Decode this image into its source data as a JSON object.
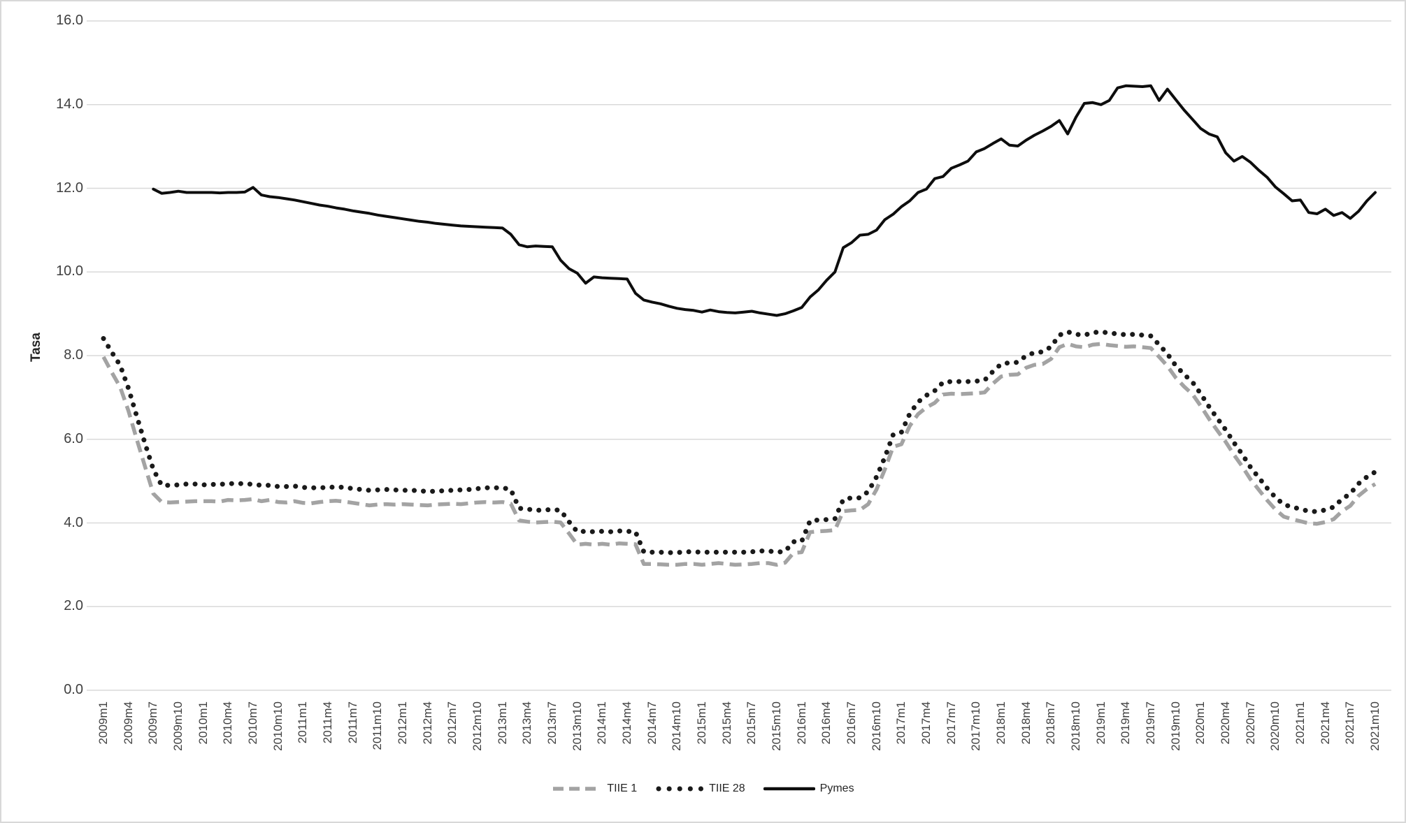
{
  "chart_data": {
    "type": "line",
    "title": "",
    "xlabel": "",
    "ylabel": "Tasa",
    "ylim": [
      0,
      16
    ],
    "ytick_labels": [
      "0.0",
      "2.0",
      "4.0",
      "6.0",
      "8.0",
      "10.0",
      "12.0",
      "14.0",
      "16.0"
    ],
    "ytick_values": [
      0,
      2,
      4,
      6,
      8,
      10,
      12,
      14,
      16
    ],
    "grid": "horizontal",
    "legend_position": "bottom-center",
    "n_months": 154,
    "x_start": "2009m1",
    "x_end": "2021m10",
    "x_tick_every_months": 3,
    "x_tick_labels": [
      "2009m1",
      "2009m4",
      "2009m7",
      "2009m10",
      "2010m1",
      "2010m4",
      "2010m7",
      "2010m10",
      "2011m1",
      "2011m4",
      "2011m7",
      "2011m10",
      "2012m1",
      "2012m4",
      "2012m7",
      "2012m10",
      "2013m1",
      "2013m4",
      "2013m7",
      "2013m10",
      "2014m1",
      "2014m4",
      "2014m7",
      "2014m10",
      "2015m1",
      "2015m4",
      "2015m7",
      "2015m10",
      "2016m1",
      "2016m4",
      "2016m7",
      "2016m10",
      "2017m1",
      "2017m4",
      "2017m7",
      "2017m10",
      "2018m1",
      "2018m4",
      "2018m7",
      "2018m10",
      "2019m1",
      "2019m4",
      "2019m7",
      "2019m10",
      "2020m1",
      "2020m4",
      "2020m7",
      "2020m10",
      "2021m1",
      "2021m4",
      "2021m7",
      "2021m10"
    ],
    "series": [
      {
        "name": "TIIE 1",
        "style": "dashed",
        "color": "#a3a3a3",
        "values": [
          7.97,
          7.6,
          7.25,
          6.68,
          6.0,
          5.35,
          4.7,
          4.5,
          4.49,
          4.5,
          4.51,
          4.52,
          4.52,
          4.52,
          4.51,
          4.55,
          4.54,
          4.55,
          4.57,
          4.52,
          4.55,
          4.5,
          4.49,
          4.52,
          4.48,
          4.47,
          4.5,
          4.52,
          4.53,
          4.51,
          4.48,
          4.45,
          4.42,
          4.44,
          4.45,
          4.44,
          4.45,
          4.44,
          4.43,
          4.42,
          4.44,
          4.45,
          4.46,
          4.45,
          4.47,
          4.49,
          4.5,
          4.49,
          4.5,
          4.46,
          4.06,
          4.03,
          4.01,
          4.02,
          4.03,
          4.01,
          3.75,
          3.48,
          3.5,
          3.48,
          3.5,
          3.48,
          3.51,
          3.5,
          3.49,
          3.02,
          3.02,
          3.01,
          3.0,
          3.0,
          3.02,
          3.02,
          3.0,
          3.02,
          3.04,
          3.02,
          3.0,
          3.01,
          3.02,
          3.04,
          3.04,
          3.0,
          3.05,
          3.28,
          3.3,
          3.78,
          3.8,
          3.81,
          3.83,
          4.28,
          4.3,
          4.31,
          4.45,
          4.8,
          5.28,
          5.82,
          5.88,
          6.32,
          6.6,
          6.76,
          6.87,
          7.07,
          7.09,
          7.08,
          7.09,
          7.1,
          7.12,
          7.33,
          7.5,
          7.54,
          7.55,
          7.71,
          7.78,
          7.8,
          7.92,
          8.2,
          8.28,
          8.22,
          8.2,
          8.26,
          8.28,
          8.25,
          8.23,
          8.21,
          8.22,
          8.2,
          8.18,
          7.97,
          7.75,
          7.47,
          7.26,
          7.08,
          6.8,
          6.49,
          6.21,
          5.94,
          5.63,
          5.35,
          5.04,
          4.79,
          4.54,
          4.32,
          4.15,
          4.09,
          4.04,
          3.99,
          3.98,
          4.02,
          4.09,
          4.28,
          4.41,
          4.65,
          4.81,
          4.93
        ]
      },
      {
        "name": "TIIE 28",
        "style": "dotted",
        "color": "#1a1a1a",
        "values": [
          8.41,
          8.08,
          7.77,
          7.22,
          6.55,
          5.9,
          5.28,
          4.9,
          4.9,
          4.91,
          4.93,
          4.93,
          4.91,
          4.92,
          4.92,
          4.94,
          4.94,
          4.94,
          4.92,
          4.9,
          4.9,
          4.87,
          4.87,
          4.88,
          4.85,
          4.84,
          4.84,
          4.85,
          4.86,
          4.85,
          4.82,
          4.8,
          4.78,
          4.79,
          4.8,
          4.79,
          4.78,
          4.78,
          4.77,
          4.75,
          4.76,
          4.77,
          4.78,
          4.79,
          4.8,
          4.82,
          4.84,
          4.84,
          4.84,
          4.8,
          4.35,
          4.33,
          4.3,
          4.31,
          4.32,
          4.3,
          4.03,
          3.79,
          3.8,
          3.79,
          3.8,
          3.79,
          3.81,
          3.8,
          3.79,
          3.31,
          3.3,
          3.3,
          3.29,
          3.29,
          3.31,
          3.31,
          3.3,
          3.3,
          3.3,
          3.3,
          3.3,
          3.3,
          3.31,
          3.33,
          3.33,
          3.3,
          3.32,
          3.55,
          3.56,
          4.05,
          4.07,
          4.08,
          4.1,
          4.56,
          4.6,
          4.6,
          4.75,
          5.1,
          5.57,
          6.11,
          6.17,
          6.61,
          6.89,
          7.05,
          7.16,
          7.36,
          7.38,
          7.38,
          7.38,
          7.39,
          7.41,
          7.62,
          7.8,
          7.83,
          7.84,
          8.0,
          8.07,
          8.09,
          8.21,
          8.49,
          8.57,
          8.51,
          8.49,
          8.55,
          8.57,
          8.54,
          8.52,
          8.5,
          8.51,
          8.49,
          8.47,
          8.26,
          8.04,
          7.76,
          7.55,
          7.37,
          7.09,
          6.78,
          6.5,
          6.23,
          5.92,
          5.64,
          5.33,
          5.08,
          4.83,
          4.61,
          4.44,
          4.38,
          4.33,
          4.28,
          4.27,
          4.31,
          4.38,
          4.57,
          4.7,
          4.94,
          5.1,
          5.22
        ]
      },
      {
        "name": "Pymes",
        "style": "solid",
        "color": "#0d0d0d",
        "values": [
          null,
          null,
          null,
          null,
          null,
          null,
          11.98,
          11.88,
          11.9,
          11.93,
          11.9,
          11.9,
          11.9,
          11.9,
          11.89,
          11.9,
          11.9,
          11.91,
          12.02,
          11.84,
          11.8,
          11.78,
          11.75,
          11.72,
          11.68,
          11.64,
          11.6,
          11.57,
          11.53,
          11.5,
          11.46,
          11.43,
          11.4,
          11.36,
          11.33,
          11.3,
          11.27,
          11.24,
          11.21,
          11.19,
          11.16,
          11.14,
          11.12,
          11.1,
          11.09,
          11.08,
          11.07,
          11.06,
          11.05,
          10.9,
          10.65,
          10.6,
          10.62,
          10.61,
          10.6,
          10.28,
          10.08,
          9.97,
          9.73,
          9.88,
          9.86,
          9.85,
          9.84,
          9.83,
          9.49,
          9.33,
          9.28,
          9.24,
          9.18,
          9.13,
          9.1,
          9.08,
          9.04,
          9.09,
          9.05,
          9.03,
          9.02,
          9.04,
          9.06,
          9.02,
          8.99,
          8.96,
          9.0,
          9.07,
          9.15,
          9.4,
          9.57,
          9.8,
          10.0,
          10.58,
          10.7,
          10.88,
          10.9,
          11.0,
          11.25,
          11.38,
          11.56,
          11.7,
          11.9,
          11.98,
          12.23,
          12.28,
          12.48,
          12.56,
          12.65,
          12.87,
          12.95,
          13.07,
          13.18,
          13.03,
          13.01,
          13.15,
          13.27,
          13.37,
          13.48,
          13.62,
          13.3,
          13.7,
          14.03,
          14.05,
          14.0,
          14.1,
          14.4,
          14.45,
          14.44,
          14.43,
          14.45,
          14.1,
          14.37,
          14.12,
          13.87,
          13.65,
          13.43,
          13.3,
          13.23,
          12.85,
          12.65,
          12.76,
          12.62,
          12.43,
          12.26,
          12.03,
          11.87,
          11.7,
          11.72,
          11.42,
          11.39,
          11.5,
          11.35,
          11.42,
          11.28,
          11.45,
          11.7,
          11.9
        ]
      }
    ],
    "colors": {
      "gridline": "#d9d9d9",
      "axis_text": "#3f3f3f",
      "background": "#ffffff",
      "frame_border": "#d8d8d8"
    }
  }
}
